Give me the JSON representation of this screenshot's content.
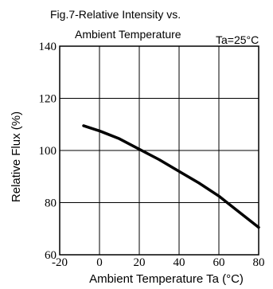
{
  "chart_data": {
    "type": "line",
    "title_line1": "Fig.7-Relative Intensity vs.",
    "title_line2": "Ambient Temperature",
    "condition": "Ta=25°C",
    "xlabel": "Ambient Temperature Ta (°C)",
    "ylabel": "Relative Flux (%)",
    "xlim": [
      -20,
      80
    ],
    "ylim": [
      60,
      140
    ],
    "x_ticks": [
      -20,
      0,
      20,
      40,
      60,
      80
    ],
    "y_ticks": [
      60,
      80,
      100,
      120,
      140
    ],
    "x_tick_labels": [
      "-20",
      "0",
      "20",
      "40",
      "60",
      "80"
    ],
    "y_tick_labels": [
      "60",
      "80",
      "100",
      "120",
      "140"
    ],
    "grid": true,
    "series": [
      {
        "x": [
          -8,
          0,
          10,
          20,
          30,
          40,
          50,
          60,
          70,
          80
        ],
        "y": [
          109.5,
          107.5,
          104.5,
          100.5,
          96.5,
          92,
          87.5,
          82.5,
          76.5,
          70.5
        ],
        "color": "#000000"
      }
    ]
  }
}
